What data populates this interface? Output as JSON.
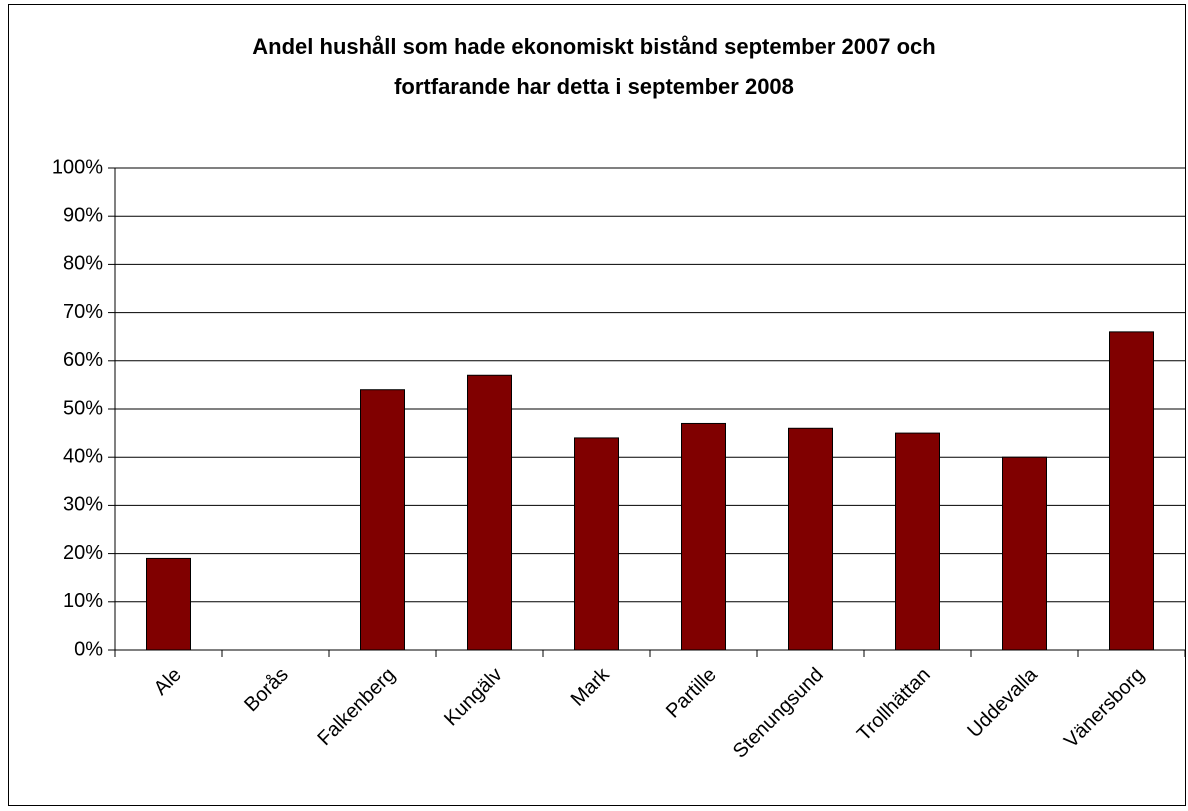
{
  "chart_data": {
    "type": "bar",
    "title": [
      "Andel hushåll som hade ekonomiskt bistånd september 2007 och",
      "fortfarande har detta i september 2008"
    ],
    "categories": [
      "Ale",
      "Borås",
      "Falkenberg",
      "Kungälv",
      "Mark",
      "Partille",
      "Stenungsund",
      "Trollhättan",
      "Uddevalla",
      "Vänersborg"
    ],
    "values": [
      19,
      null,
      54,
      57,
      44,
      47,
      46,
      45,
      40,
      66
    ],
    "color": "#800000",
    "ylim": [
      0,
      100
    ],
    "yticks": [
      {
        "value": 0,
        "label": "0%"
      },
      {
        "value": 10,
        "label": "10%"
      },
      {
        "value": 20,
        "label": "20%"
      },
      {
        "value": 30,
        "label": "30%"
      },
      {
        "value": 40,
        "label": "40%"
      },
      {
        "value": 50,
        "label": "50%"
      },
      {
        "value": 60,
        "label": "60%"
      },
      {
        "value": 70,
        "label": "70%"
      },
      {
        "value": 80,
        "label": "80%"
      },
      {
        "value": 90,
        "label": "90%"
      },
      {
        "value": 100,
        "label": "100%"
      }
    ],
    "grid": true
  }
}
